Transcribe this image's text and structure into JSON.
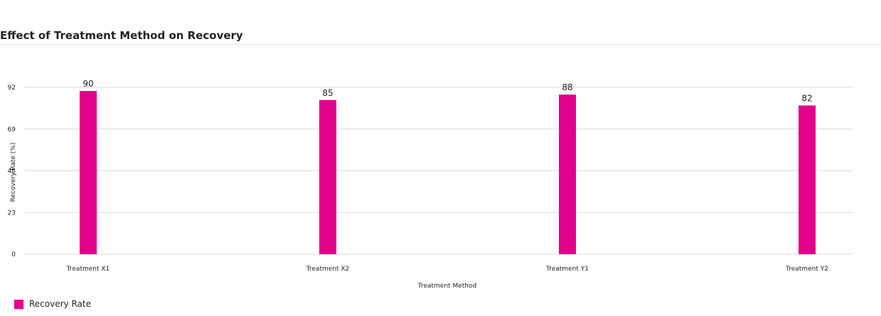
{
  "chart_data": {
    "type": "bar",
    "title": "Effect of Treatment Method on Recovery",
    "xlabel": "Treatment Method",
    "ylabel": "Recovery Rate (%)",
    "categories": [
      "Treatment X1",
      "Treatment X2",
      "Treatment Y1",
      "Treatment Y2"
    ],
    "series": [
      {
        "name": "Recovery Rate",
        "values": [
          90,
          85,
          88,
          82
        ],
        "color": "#E3008C"
      }
    ],
    "yticks": [
      "0",
      "23",
      "46",
      "69",
      "92"
    ],
    "ylim": [
      0,
      92
    ],
    "grid": true,
    "data_labels": true,
    "legend_position": "bottom-left"
  }
}
